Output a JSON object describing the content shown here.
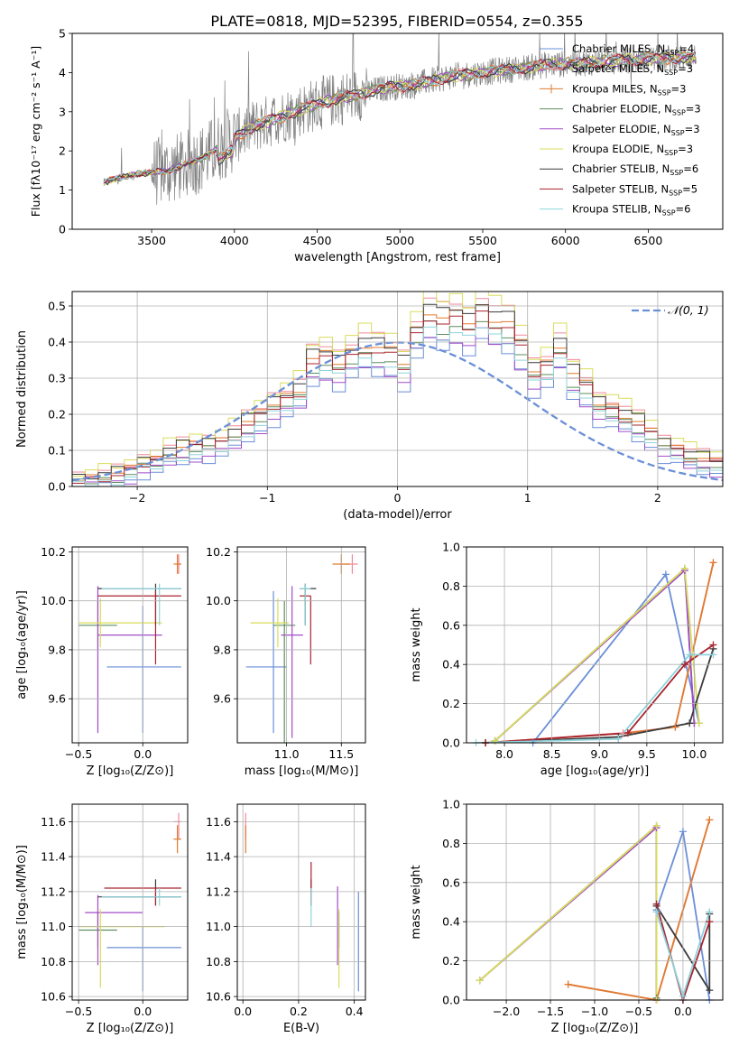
{
  "figure_title": "PLATE=0818, MJD=52395, FIBERID=0554, z=0.355",
  "series_colors": {
    "chabrier_miles": "#6a8fd8",
    "salpeter_miles": "#f08a9a",
    "kroupa_miles": "#e07b2f",
    "chabrier_elodie": "#5e8e5e",
    "salpeter_elodie": "#a24bc8",
    "kroupa_elodie": "#d8dd5a",
    "chabrier_stelib": "#3a3a3a",
    "salpeter_stelib": "#a8232e",
    "kroupa_stelib": "#8fd4dc",
    "observed": "#808080",
    "normal": "#6a8fd8"
  },
  "chart_data": [
    {
      "id": "spectrum",
      "type": "line",
      "xlabel": "wavelength [Angstrom, rest frame]",
      "ylabel": "Flux [fλ10⁻¹⁷ erg cm⁻² s⁻¹ A⁻¹]",
      "xlim": [
        3020,
        6950
      ],
      "ylim": [
        0,
        5
      ],
      "xticks": [
        3500,
        4000,
        4500,
        5000,
        5500,
        6000,
        6500
      ],
      "yticks": [
        0,
        1,
        2,
        3,
        4,
        5
      ],
      "legend": [
        {
          "label": "Chabrier MILES, N",
          "sub": "SSP",
          "tail": "=4",
          "color": "chabrier_miles",
          "marker": false
        },
        {
          "label": "Salpeter MILES, N",
          "sub": "SSP",
          "tail": "=3",
          "color": "salpeter_miles",
          "marker": false
        },
        {
          "label": "Kroupa MILES, N",
          "sub": "SSP",
          "tail": "=3",
          "color": "kroupa_miles",
          "marker": true
        },
        {
          "label": "Chabrier ELODIE, N",
          "sub": "SSP",
          "tail": "=3",
          "color": "chabrier_elodie",
          "marker": false
        },
        {
          "label": "Salpeter ELODIE, N",
          "sub": "SSP",
          "tail": "=3",
          "color": "salpeter_elodie",
          "marker": false
        },
        {
          "label": "Kroupa ELODIE, N",
          "sub": "SSP",
          "tail": "=3",
          "color": "kroupa_elodie",
          "marker": false
        },
        {
          "label": "Chabrier STELIB, N",
          "sub": "SSP",
          "tail": "=6",
          "color": "chabrier_stelib",
          "marker": false
        },
        {
          "label": "Salpeter STELIB, N",
          "sub": "SSP",
          "tail": "=5",
          "color": "salpeter_stelib",
          "marker": false
        },
        {
          "label": "Kroupa STELIB, N",
          "sub": "SSP",
          "tail": "=6",
          "color": "kroupa_stelib",
          "marker": false
        }
      ],
      "legend_position": "upper right",
      "observed_range": [
        3210,
        6790
      ],
      "continuum": [
        [
          3210,
          1.2
        ],
        [
          3400,
          1.4
        ],
        [
          3600,
          1.5
        ],
        [
          3800,
          1.8
        ],
        [
          3950,
          2.2
        ],
        [
          4100,
          2.6
        ],
        [
          4300,
          2.9
        ],
        [
          4500,
          3.2
        ],
        [
          4700,
          3.4
        ],
        [
          4900,
          3.6
        ],
        [
          5100,
          3.7
        ],
        [
          5300,
          3.9
        ],
        [
          5500,
          4.0
        ],
        [
          5700,
          4.1
        ],
        [
          5900,
          4.2
        ],
        [
          6100,
          4.25
        ],
        [
          6300,
          4.3
        ],
        [
          6500,
          4.35
        ],
        [
          6790,
          4.4
        ]
      ]
    },
    {
      "id": "residuals",
      "type": "histogram",
      "xlabel": "(data-model)/error",
      "ylabel": "Normed distribution",
      "xlim": [
        -2.5,
        2.5
      ],
      "ylim": [
        0,
        0.54
      ],
      "xticks": [
        -2,
        -1,
        0,
        1,
        2
      ],
      "yticks": [
        0.0,
        0.1,
        0.2,
        0.3,
        0.4,
        0.5
      ],
      "bin_width": 0.1,
      "bin_start": -2.5,
      "hist": [
        0.015,
        0.02,
        0.025,
        0.03,
        0.04,
        0.06,
        0.07,
        0.09,
        0.1,
        0.105,
        0.11,
        0.12,
        0.14,
        0.17,
        0.19,
        0.22,
        0.24,
        0.26,
        0.34,
        0.35,
        0.33,
        0.36,
        0.38,
        0.37,
        0.36,
        0.33,
        0.42,
        0.47,
        0.45,
        0.46,
        0.44,
        0.48,
        0.45,
        0.44,
        0.38,
        0.31,
        0.33,
        0.38,
        0.3,
        0.27,
        0.22,
        0.21,
        0.19,
        0.17,
        0.14,
        0.11,
        0.1,
        0.08,
        0.07,
        0.06,
        0.05,
        0.045,
        0.04,
        0.035,
        0.03
      ],
      "curve_label": "𝒩(0, 1)",
      "legend_position": "upper right"
    },
    {
      "id": "age-vs-Z",
      "type": "errorbar",
      "xlabel": "Z [log₁₀(Z/Z⊙)]",
      "ylabel": "age  [log₁₀(age/yr)]",
      "xlim": [
        -0.55,
        0.35
      ],
      "ylim": [
        9.42,
        10.22
      ],
      "xticks": [
        -0.5,
        0.0
      ],
      "yticks": [
        9.6,
        9.8,
        10.0,
        10.2
      ],
      "points": [
        {
          "c": "chabrier_miles",
          "x": 0.0,
          "xe": [
            0.28,
            0.3
          ],
          "y": 9.73,
          "ye": [
            0.27,
            0.25
          ]
        },
        {
          "c": "salpeter_miles",
          "x": 0.28,
          "xe": [
            0.02,
            0.02
          ],
          "y": 10.15,
          "ye": [
            0.04,
            0.04
          ]
        },
        {
          "c": "kroupa_miles",
          "x": 0.27,
          "xe": [
            0.03,
            0.03
          ],
          "y": 10.15,
          "ye": [
            0.04,
            0.04
          ]
        },
        {
          "c": "chabrier_elodie",
          "x": -0.35,
          "xe": [
            0.15,
            0.15
          ],
          "y": 9.9,
          "ye": [
            0.1,
            0.1
          ]
        },
        {
          "c": "salpeter_elodie",
          "x": -0.35,
          "xe": [
            0.0,
            0.5
          ],
          "y": 9.86,
          "ye": [
            0.4,
            0.2
          ]
        },
        {
          "c": "kroupa_elodie",
          "x": -0.33,
          "xe": [
            0.17,
            0.48
          ],
          "y": 9.91,
          "ye": [
            0.1,
            0.1
          ]
        },
        {
          "c": "chabrier_stelib",
          "x": 0.1,
          "xe": [
            0.45,
            0.2
          ],
          "y": 10.05,
          "ye": [
            0.15,
            0.02
          ]
        },
        {
          "c": "salpeter_stelib",
          "x": 0.1,
          "xe": [
            0.45,
            0.2
          ],
          "y": 10.02,
          "ye": [
            0.28,
            0.02
          ]
        },
        {
          "c": "kroupa_stelib",
          "x": 0.13,
          "xe": [
            0.45,
            0.17
          ],
          "y": 10.05,
          "ye": [
            0.15,
            0.02
          ]
        }
      ]
    },
    {
      "id": "age-vs-mass",
      "type": "errorbar",
      "xlabel": "mass [log₁₀(M/M⊙)]",
      "ylabel": "",
      "xlim": [
        10.55,
        11.72
      ],
      "ylim": [
        9.42,
        10.22
      ],
      "xticks": [
        11.0,
        11.5
      ],
      "yticks": [
        9.6,
        9.8,
        10.0,
        10.2
      ],
      "points": [
        {
          "c": "chabrier_miles",
          "x": 10.88,
          "xe": [
            0.25,
            0.12
          ],
          "y": 9.73,
          "ye": [
            0.27,
            0.31
          ]
        },
        {
          "c": "salpeter_miles",
          "x": 11.6,
          "xe": [
            0.1,
            0.05
          ],
          "y": 10.15,
          "ye": [
            0.04,
            0.04
          ]
        },
        {
          "c": "kroupa_miles",
          "x": 11.5,
          "xe": [
            0.08,
            0.08
          ],
          "y": 10.15,
          "ye": [
            0.04,
            0.04
          ]
        },
        {
          "c": "chabrier_elodie",
          "x": 10.98,
          "xe": [
            0.1,
            0.1
          ],
          "y": 9.9,
          "ye": [
            0.5,
            0.1
          ]
        },
        {
          "c": "salpeter_elodie",
          "x": 11.05,
          "xe": [
            0.1,
            0.1
          ],
          "y": 9.86,
          "ye": [
            0.42,
            0.2
          ]
        },
        {
          "c": "kroupa_elodie",
          "x": 10.92,
          "xe": [
            0.25,
            0.1
          ],
          "y": 9.91,
          "ye": [
            0.1,
            0.1
          ]
        },
        {
          "c": "chabrier_stelib",
          "x": 11.17,
          "xe": [
            0.05,
            0.1
          ],
          "y": 10.05,
          "ye": [
            0.15,
            0.02
          ]
        },
        {
          "c": "salpeter_stelib",
          "x": 11.22,
          "xe": [
            0.1,
            0.0
          ],
          "y": 10.02,
          "ye": [
            0.28,
            0.0
          ]
        },
        {
          "c": "kroupa_stelib",
          "x": 11.17,
          "xe": [
            0.05,
            0.05
          ],
          "y": 10.05,
          "ye": [
            0.15,
            0.02
          ]
        }
      ]
    },
    {
      "id": "weight-vs-age",
      "type": "line",
      "xlabel": "age  [log₁₀(age/yr)]",
      "ylabel": "mass weight",
      "xlim": [
        7.6,
        10.3
      ],
      "ylim": [
        0,
        1.0
      ],
      "xticks": [
        8.0,
        8.5,
        9.0,
        9.5,
        10.0
      ],
      "yticks": [
        0.0,
        0.2,
        0.4,
        0.6,
        0.8,
        1.0
      ],
      "series": [
        {
          "c": "chabrier_miles",
          "x": [
            8.3,
            9.7,
            10.05
          ],
          "y": [
            0.0,
            0.86,
            0.1
          ]
        },
        {
          "c": "salpeter_miles",
          "x": [
            7.8,
            9.25,
            9.8,
            10.2
          ],
          "y": [
            0.0,
            0.05,
            0.08,
            0.92
          ]
        },
        {
          "c": "kroupa_miles",
          "x": [
            7.8,
            9.3,
            9.8,
            10.2
          ],
          "y": [
            0.0,
            0.05,
            0.08,
            0.92
          ]
        },
        {
          "c": "chabrier_elodie",
          "x": [
            7.9,
            9.9,
            10.0
          ],
          "y": [
            0.01,
            0.89,
            0.1
          ]
        },
        {
          "c": "salpeter_elodie",
          "x": [
            7.9,
            9.9,
            10.0
          ],
          "y": [
            0.01,
            0.88,
            0.1
          ]
        },
        {
          "c": "kroupa_elodie",
          "x": [
            7.9,
            9.9,
            10.05
          ],
          "y": [
            0.01,
            0.89,
            0.1
          ]
        },
        {
          "c": "chabrier_stelib",
          "x": [
            7.8,
            9.2,
            9.95,
            10.2
          ],
          "y": [
            0.0,
            0.03,
            0.1,
            0.48
          ]
        },
        {
          "c": "salpeter_stelib",
          "x": [
            7.8,
            9.3,
            9.9,
            10.2
          ],
          "y": [
            0.0,
            0.05,
            0.4,
            0.5
          ]
        },
        {
          "c": "kroupa_stelib",
          "x": [
            7.7,
            9.2,
            9.95,
            10.2
          ],
          "y": [
            0.0,
            0.02,
            0.45,
            0.45
          ]
        }
      ]
    },
    {
      "id": "mass-vs-Z",
      "type": "errorbar",
      "xlabel": "Z [log₁₀(Z/Z⊙)]",
      "ylabel": "mass [log₁₀(M/M⊙)]",
      "xlim": [
        -0.55,
        0.35
      ],
      "ylim": [
        10.58,
        11.7
      ],
      "xticks": [
        -0.5,
        0.0
      ],
      "yticks": [
        10.6,
        10.8,
        11.0,
        11.2,
        11.4,
        11.6
      ],
      "points": [
        {
          "c": "chabrier_miles",
          "x": 0.0,
          "xe": [
            0.28,
            0.3
          ],
          "y": 10.88,
          "ye": [
            0.25,
            0.12
          ]
        },
        {
          "c": "salpeter_miles",
          "x": 0.28,
          "xe": [
            0.04,
            0.02
          ],
          "y": 11.6,
          "ye": [
            0.1,
            0.05
          ]
        },
        {
          "c": "kroupa_miles",
          "x": 0.27,
          "xe": [
            0.03,
            0.03
          ],
          "y": 11.5,
          "ye": [
            0.08,
            0.08
          ]
        },
        {
          "c": "chabrier_elodie",
          "x": -0.35,
          "xe": [
            0.15,
            0.15
          ],
          "y": 10.98,
          "ye": [
            0.1,
            0.1
          ]
        },
        {
          "c": "salpeter_elodie",
          "x": -0.35,
          "xe": [
            0.1,
            0.35
          ],
          "y": 11.08,
          "ye": [
            0.3,
            0.1
          ]
        },
        {
          "c": "kroupa_elodie",
          "x": -0.33,
          "xe": [
            0.17,
            0.5
          ],
          "y": 11.0,
          "ye": [
            0.35,
            0.1
          ]
        },
        {
          "c": "chabrier_stelib",
          "x": 0.1,
          "xe": [
            0.45,
            0.2
          ],
          "y": 11.17,
          "ye": [
            0.05,
            0.1
          ]
        },
        {
          "c": "salpeter_stelib",
          "x": 0.1,
          "xe": [
            0.4,
            0.2
          ],
          "y": 11.22,
          "ye": [
            0.1,
            0.0
          ]
        },
        {
          "c": "kroupa_stelib",
          "x": 0.13,
          "xe": [
            0.45,
            0.17
          ],
          "y": 11.17,
          "ye": [
            0.05,
            0.05
          ]
        }
      ]
    },
    {
      "id": "mass-vs-ebv",
      "type": "errorbar",
      "xlabel": "E(B-V)",
      "ylabel": "",
      "xlim": [
        -0.02,
        0.44
      ],
      "ylim": [
        10.58,
        11.7
      ],
      "xticks": [
        0.0,
        0.2,
        0.4
      ],
      "yticks": [
        10.6,
        10.8,
        11.0,
        11.2,
        11.4,
        11.6
      ],
      "points": [
        {
          "c": "chabrier_miles",
          "x": 0.415,
          "xe": [
            0,
            0
          ],
          "y": 10.88,
          "ye": [
            0.25,
            0.32
          ]
        },
        {
          "c": "salpeter_miles",
          "x": 0.01,
          "xe": [
            0,
            0
          ],
          "y": 11.6,
          "ye": [
            0.1,
            0.05
          ]
        },
        {
          "c": "kroupa_miles",
          "x": 0.01,
          "xe": [
            0,
            0
          ],
          "y": 11.5,
          "ye": [
            0.08,
            0.08
          ]
        },
        {
          "c": "chabrier_elodie",
          "x": 0.345,
          "xe": [
            0,
            0
          ],
          "y": 10.98,
          "ye": [
            0.1,
            0.1
          ]
        },
        {
          "c": "salpeter_elodie",
          "x": 0.34,
          "xe": [
            0,
            0
          ],
          "y": 11.08,
          "ye": [
            0.3,
            0.15
          ]
        },
        {
          "c": "kroupa_elodie",
          "x": 0.345,
          "xe": [
            0,
            0
          ],
          "y": 11.0,
          "ye": [
            0.35,
            0.1
          ]
        },
        {
          "c": "chabrier_stelib",
          "x": 0.245,
          "xe": [
            0,
            0
          ],
          "y": 11.17,
          "ye": [
            0.05,
            0.1
          ]
        },
        {
          "c": "salpeter_stelib",
          "x": 0.245,
          "xe": [
            0,
            0
          ],
          "y": 11.22,
          "ye": [
            0.1,
            0.15
          ]
        },
        {
          "c": "kroupa_stelib",
          "x": 0.245,
          "xe": [
            0,
            0
          ],
          "y": 11.17,
          "ye": [
            0.17,
            0.05
          ]
        }
      ]
    },
    {
      "id": "weight-vs-Z",
      "type": "line",
      "xlabel": "Z [log₁₀(Z/Z⊙)]",
      "ylabel": "mass weight",
      "xlim": [
        -2.45,
        0.45
      ],
      "ylim": [
        0,
        1.0
      ],
      "xticks": [
        -2.0,
        -1.5,
        -1.0,
        -0.5,
        0.0
      ],
      "yticks": [
        0.0,
        0.2,
        0.4,
        0.6,
        0.8,
        1.0
      ],
      "series": [
        {
          "c": "chabrier_miles",
          "x": [
            -0.3,
            0.0,
            0.3
          ],
          "y": [
            0.46,
            0.86,
            0.0
          ]
        },
        {
          "c": "salpeter_miles",
          "x": [
            -1.3,
            -0.3,
            0.3
          ],
          "y": [
            0.08,
            0.0,
            0.92
          ]
        },
        {
          "c": "kroupa_miles",
          "x": [
            -1.3,
            -0.3,
            0.3
          ],
          "y": [
            0.08,
            0.0,
            0.92
          ]
        },
        {
          "c": "chabrier_elodie",
          "x": [
            -2.3,
            -0.3,
            -0.3
          ],
          "y": [
            0.1,
            0.89,
            0.01
          ]
        },
        {
          "c": "salpeter_elodie",
          "x": [
            -2.3,
            -0.3,
            -0.3
          ],
          "y": [
            0.1,
            0.88,
            0.0
          ]
        },
        {
          "c": "kroupa_elodie",
          "x": [
            -2.3,
            -0.3,
            -0.3
          ],
          "y": [
            0.1,
            0.89,
            0.0
          ]
        },
        {
          "c": "chabrier_stelib",
          "x": [
            -0.3,
            0.3,
            0.3
          ],
          "y": [
            0.48,
            0.05,
            0.44
          ]
        },
        {
          "c": "salpeter_stelib",
          "x": [
            -0.3,
            0.0,
            0.3
          ],
          "y": [
            0.49,
            0.0,
            0.4
          ]
        },
        {
          "c": "kroupa_stelib",
          "x": [
            -0.3,
            0.0,
            0.3
          ],
          "y": [
            0.45,
            0.02,
            0.45
          ]
        }
      ]
    }
  ]
}
